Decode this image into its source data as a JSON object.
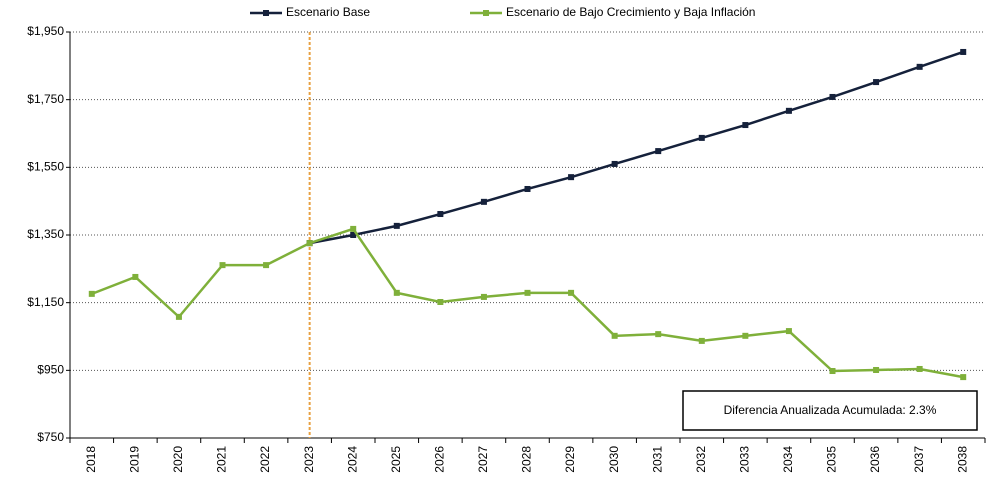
{
  "chart_data": {
    "type": "line",
    "categories": [
      "2018",
      "2019",
      "2020",
      "2021",
      "2022",
      "2023",
      "2024",
      "2025",
      "2026",
      "2027",
      "2028",
      "2029",
      "2030",
      "2031",
      "2032",
      "2033",
      "2034",
      "2035",
      "2036",
      "2037",
      "2038"
    ],
    "series": [
      {
        "name": "Escenario Base",
        "color": "#15213b",
        "values": [
          null,
          null,
          null,
          null,
          null,
          1326,
          1350,
          1377,
          1412,
          1448,
          1486,
          1521,
          1560,
          1598,
          1637,
          1675,
          1717,
          1758,
          1802,
          1847,
          1891
        ]
      },
      {
        "name": "Escenario de Bajo Crecimiento y Baja Inflación",
        "color": "#7fb03a",
        "values": [
          1176,
          1226,
          1108,
          1261,
          1261,
          1326,
          1368,
          1179,
          1152,
          1167,
          1179,
          1179,
          1052,
          1057,
          1037,
          1052,
          1066,
          948,
          951,
          954,
          930
        ]
      }
    ],
    "ylim": [
      750,
      1950
    ],
    "yticks": [
      {
        "value": 750,
        "label": "$750"
      },
      {
        "value": 950,
        "label": "$950"
      },
      {
        "value": 1150,
        "label": "$1,150"
      },
      {
        "value": 1350,
        "label": "$1,350"
      },
      {
        "value": 1550,
        "label": "$1,550"
      },
      {
        "value": 1750,
        "label": "$1,750"
      },
      {
        "value": 1950,
        "label": "$1,950"
      }
    ],
    "grid": true,
    "legend": "top",
    "reference_line": "2023",
    "reference_color": "#e8a040",
    "annotation": "Diferencia Anualizada Acumulada: 2.3%"
  }
}
